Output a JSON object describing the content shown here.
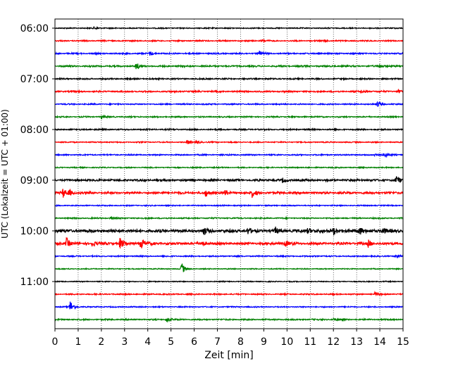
{
  "chart_data": {
    "type": "line",
    "title": "",
    "xlabel": "Zeit  [min]",
    "ylabel": "UTC (Lokalzeit = UTC + 01:00)",
    "xlim": [
      0,
      15
    ],
    "x_ticks": [
      0,
      1,
      2,
      3,
      4,
      5,
      6,
      7,
      8,
      9,
      10,
      11,
      12,
      13,
      14,
      15
    ],
    "x_tick_labels": [
      "0",
      "1",
      "2",
      "3",
      "4",
      "5",
      "6",
      "7",
      "8",
      "9",
      "10",
      "11",
      "12",
      "13",
      "14",
      "15"
    ],
    "y_tick_labels": [
      "06:00",
      "07:00",
      "08:00",
      "09:00",
      "10:00",
      "11:00"
    ],
    "row_start": "06:00",
    "row_interval_minutes": 15,
    "grid": "vertical dotted",
    "row_colors": [
      "#000000",
      "#ff0000",
      "#0000ff",
      "#008000"
    ],
    "series": [
      {
        "start": "06:00",
        "color": "#000000",
        "noise": 0.8,
        "events": [
          {
            "t": 1.7,
            "amp": 2
          }
        ]
      },
      {
        "start": "06:15",
        "color": "#ff0000",
        "noise": 0.9,
        "events": [
          {
            "t": 8.9,
            "amp": 2
          },
          {
            "t": 11.6,
            "amp": 2
          }
        ]
      },
      {
        "start": "06:30",
        "color": "#0000ff",
        "noise": 1.0,
        "events": [
          {
            "t": 4.1,
            "amp": 3
          },
          {
            "t": 8.8,
            "amp": 3
          }
        ]
      },
      {
        "start": "06:45",
        "color": "#008000",
        "noise": 1.1,
        "events": [
          {
            "t": 3.5,
            "amp": 5
          },
          {
            "t": 14.0,
            "amp": 3
          }
        ]
      },
      {
        "start": "07:00",
        "color": "#000000",
        "noise": 1.0,
        "events": []
      },
      {
        "start": "07:15",
        "color": "#ff0000",
        "noise": 1.1,
        "events": [
          {
            "t": 13.2,
            "amp": 2
          },
          {
            "t": 14.8,
            "amp": 2
          }
        ]
      },
      {
        "start": "07:30",
        "color": "#0000ff",
        "noise": 0.9,
        "events": [
          {
            "t": 13.9,
            "amp": 4
          }
        ]
      },
      {
        "start": "07:45",
        "color": "#008000",
        "noise": 0.9,
        "events": [
          {
            "t": 2.0,
            "amp": 2
          }
        ]
      },
      {
        "start": "08:00",
        "color": "#000000",
        "noise": 1.0,
        "events": []
      },
      {
        "start": "08:15",
        "color": "#ff0000",
        "noise": 0.8,
        "events": [
          {
            "t": 5.7,
            "amp": 3
          },
          {
            "t": 6.1,
            "amp": 3
          }
        ]
      },
      {
        "start": "08:30",
        "color": "#0000ff",
        "noise": 0.9,
        "events": [
          {
            "t": 13.8,
            "amp": 4
          },
          {
            "t": 14.2,
            "amp": 3
          }
        ]
      },
      {
        "start": "08:45",
        "color": "#008000",
        "noise": 0.8,
        "events": []
      },
      {
        "start": "09:00",
        "color": "#000000",
        "noise": 1.5,
        "events": [
          {
            "t": 9.8,
            "amp": 3
          },
          {
            "t": 14.7,
            "amp": 6
          }
        ]
      },
      {
        "start": "09:15",
        "color": "#ff0000",
        "noise": 1.6,
        "events": [
          {
            "t": 0.35,
            "amp": 6
          },
          {
            "t": 0.6,
            "amp": 4
          },
          {
            "t": 6.5,
            "amp": 5
          },
          {
            "t": 7.3,
            "amp": 4
          },
          {
            "t": 8.5,
            "amp": 6
          }
        ]
      },
      {
        "start": "09:30",
        "color": "#0000ff",
        "noise": 0.8,
        "events": []
      },
      {
        "start": "09:45",
        "color": "#008000",
        "noise": 0.9,
        "events": [
          {
            "t": 2.4,
            "amp": 2
          }
        ]
      },
      {
        "start": "10:00",
        "color": "#000000",
        "noise": 2.2,
        "events": [
          {
            "t": 6.4,
            "amp": 5
          },
          {
            "t": 8.3,
            "amp": 4
          },
          {
            "t": 9.5,
            "amp": 4
          },
          {
            "t": 10.9,
            "amp": 4
          },
          {
            "t": 12.0,
            "amp": 6
          },
          {
            "t": 13.1,
            "amp": 7
          },
          {
            "t": 14.1,
            "amp": 5
          }
        ]
      },
      {
        "start": "10:15",
        "color": "#ff0000",
        "noise": 1.8,
        "events": [
          {
            "t": 0.5,
            "amp": 8
          },
          {
            "t": 1.6,
            "amp": 4
          },
          {
            "t": 2.8,
            "amp": 8
          },
          {
            "t": 3.7,
            "amp": 10
          },
          {
            "t": 6.3,
            "amp": 4
          },
          {
            "t": 9.9,
            "amp": 4
          },
          {
            "t": 13.5,
            "amp": 5
          }
        ]
      },
      {
        "start": "10:30",
        "color": "#0000ff",
        "noise": 0.9,
        "events": [
          {
            "t": 14.7,
            "amp": 4
          }
        ]
      },
      {
        "start": "10:45",
        "color": "#008000",
        "noise": 0.7,
        "events": [
          {
            "t": 5.45,
            "amp": 9
          }
        ]
      },
      {
        "start": "11:00",
        "color": "#000000",
        "noise": 0.7,
        "events": []
      },
      {
        "start": "11:15",
        "color": "#ff0000",
        "noise": 0.9,
        "events": [
          {
            "t": 13.8,
            "amp": 3
          }
        ]
      },
      {
        "start": "11:30",
        "color": "#0000ff",
        "noise": 0.8,
        "events": [
          {
            "t": 0.65,
            "amp": 9
          }
        ]
      },
      {
        "start": "11:45",
        "color": "#008000",
        "noise": 1.0,
        "events": [
          {
            "t": 4.8,
            "amp": 4
          },
          {
            "t": 12.0,
            "amp": 2
          }
        ]
      }
    ]
  }
}
